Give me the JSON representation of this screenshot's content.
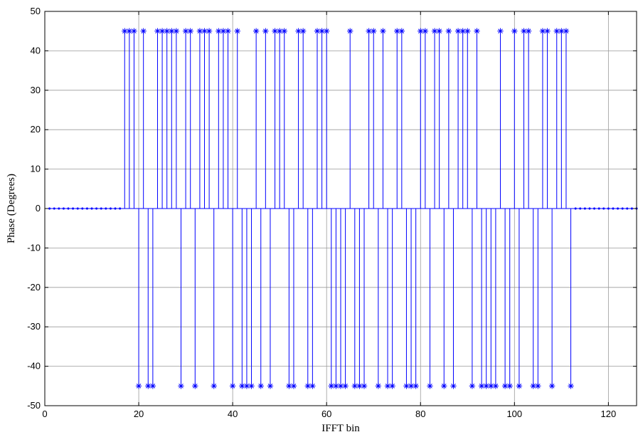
{
  "chart_data": {
    "type": "stem",
    "xlabel": "IFFT bin",
    "ylabel": "Phase (Degrees)",
    "xlim": [
      0,
      126
    ],
    "ylim": [
      -50,
      50
    ],
    "xticks": [
      0,
      20,
      40,
      60,
      80,
      100,
      120
    ],
    "yticks": [
      -50,
      -40,
      -30,
      -20,
      -10,
      0,
      10,
      20,
      30,
      40,
      50
    ],
    "grid": true,
    "series": [
      {
        "color": "#0000ff",
        "marker": "asterisk",
        "x": [
          1,
          2,
          3,
          4,
          5,
          6,
          7,
          8,
          9,
          10,
          11,
          12,
          13,
          14,
          15,
          16,
          17,
          18,
          19,
          20,
          21,
          22,
          23,
          24,
          25,
          26,
          27,
          28,
          29,
          30,
          31,
          32,
          33,
          34,
          35,
          36,
          37,
          38,
          39,
          40,
          41,
          42,
          43,
          44,
          45,
          46,
          47,
          48,
          49,
          50,
          51,
          52,
          53,
          54,
          55,
          56,
          57,
          58,
          59,
          60,
          61,
          62,
          63,
          64,
          65,
          66,
          67,
          68,
          69,
          70,
          71,
          72,
          73,
          74,
          75,
          76,
          77,
          78,
          79,
          80,
          81,
          82,
          83,
          84,
          85,
          86,
          87,
          88,
          89,
          90,
          91,
          92,
          93,
          94,
          95,
          96,
          97,
          98,
          99,
          100,
          101,
          102,
          103,
          104,
          105,
          106,
          107,
          108,
          109,
          110,
          111,
          112,
          113,
          114,
          115,
          116,
          117,
          118,
          119,
          120,
          121,
          122,
          123,
          124,
          125,
          126
        ],
        "y": [
          0,
          0,
          0,
          0,
          0,
          0,
          0,
          0,
          0,
          0,
          0,
          0,
          0,
          0,
          0,
          0,
          45,
          45,
          45,
          -45,
          45,
          -45,
          -45,
          45,
          45,
          45,
          45,
          45,
          -45,
          45,
          45,
          -45,
          45,
          45,
          45,
          -45,
          45,
          45,
          45,
          -45,
          45,
          -45,
          -45,
          -45,
          45,
          -45,
          45,
          -45,
          45,
          45,
          45,
          -45,
          -45,
          45,
          45,
          -45,
          -45,
          45,
          45,
          45,
          -45,
          -45,
          -45,
          -45,
          45,
          -45,
          -45,
          -45,
          45,
          45,
          -45,
          45,
          -45,
          -45,
          45,
          45,
          -45,
          -45,
          -45,
          45,
          45,
          -45,
          45,
          45,
          -45,
          45,
          -45,
          45,
          45,
          45,
          -45,
          45,
          -45,
          -45,
          -45,
          -45,
          45,
          -45,
          -45,
          45,
          -45,
          45,
          45,
          -45,
          -45,
          45,
          45,
          -45,
          45,
          45,
          45,
          -45,
          0,
          0,
          0,
          0,
          0,
          0,
          0,
          0,
          0,
          0,
          0,
          0,
          0,
          0
        ]
      }
    ]
  }
}
